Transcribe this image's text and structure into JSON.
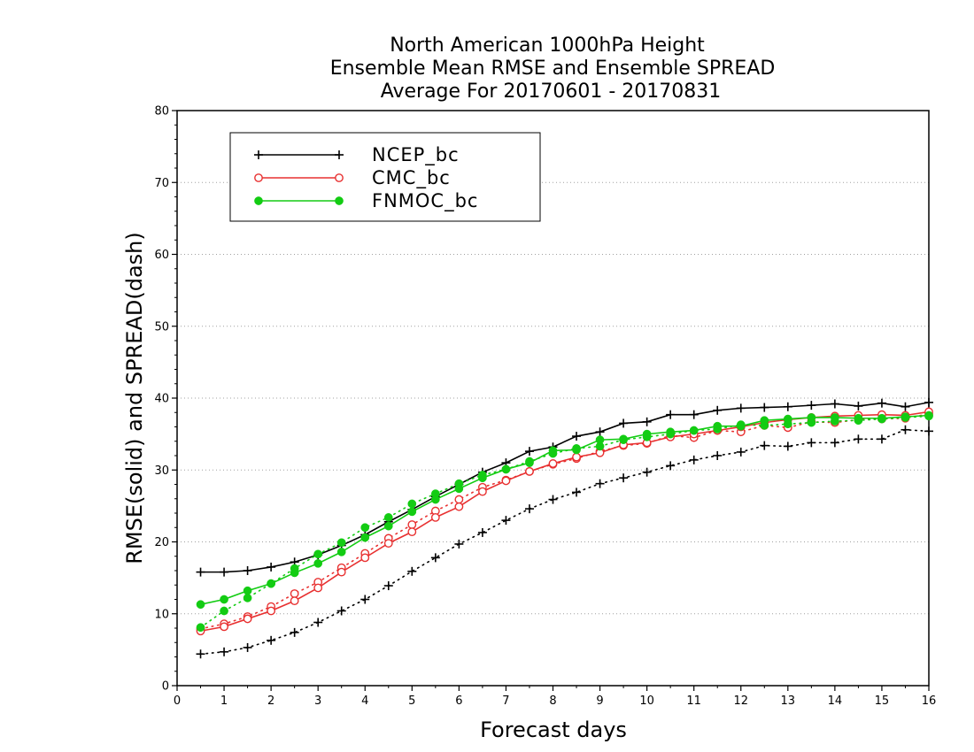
{
  "chart_data": {
    "type": "line",
    "title_lines": [
      "North American 1000hPa Height",
      "Ensemble Mean RMSE and Ensemble SPREAD",
      "Average For 20170601 - 20170831"
    ],
    "xlabel": "Forecast days",
    "ylabel": "RMSE(solid) and SPREAD(dash)",
    "xlim": [
      0,
      16
    ],
    "ylim": [
      0,
      80
    ],
    "xticks": [
      0,
      1,
      2,
      3,
      4,
      5,
      6,
      7,
      8,
      9,
      10,
      11,
      12,
      13,
      14,
      15,
      16
    ],
    "yticks": [
      0,
      10,
      20,
      30,
      40,
      50,
      60,
      70,
      80
    ],
    "grid": "horizontal dotted",
    "legend_position": "top-left",
    "x": [
      0.5,
      1,
      1.5,
      2,
      2.5,
      3,
      3.5,
      4,
      4.5,
      5,
      5.5,
      6,
      6.5,
      7,
      7.5,
      8,
      8.5,
      9,
      9.5,
      10,
      10.5,
      11,
      11.5,
      12,
      12.5,
      13,
      13.5,
      14,
      14.5,
      15,
      15.5,
      16
    ],
    "series": [
      {
        "name": "NCEP_bc",
        "color": "#000000",
        "marker": "plus",
        "rmse": [
          15.8,
          15.8,
          16.0,
          16.5,
          17.2,
          18.2,
          19.5,
          21.0,
          22.8,
          24.5,
          26.3,
          28.0,
          29.7,
          31.0,
          32.6,
          33.2,
          34.7,
          35.3,
          36.5,
          36.7,
          37.7,
          37.7,
          38.3,
          38.6,
          38.7,
          38.8,
          39.0,
          39.2,
          38.9,
          39.3,
          38.8,
          39.4
        ],
        "spread": [
          4.4,
          4.7,
          5.3,
          6.3,
          7.4,
          8.8,
          10.4,
          12.0,
          13.9,
          15.9,
          17.8,
          19.7,
          21.3,
          23.0,
          24.6,
          25.9,
          26.9,
          28.1,
          28.9,
          29.7,
          30.6,
          31.4,
          32.0,
          32.5,
          33.4,
          33.3,
          33.8,
          33.8,
          34.3,
          34.3,
          35.6,
          35.4
        ]
      },
      {
        "name": "CMC_bc",
        "color": "#e83030",
        "marker": "open-circle",
        "rmse": [
          7.6,
          8.2,
          9.3,
          10.4,
          11.8,
          13.6,
          15.8,
          17.8,
          19.8,
          21.4,
          23.4,
          24.9,
          27.0,
          28.5,
          29.8,
          30.9,
          31.8,
          32.4,
          33.5,
          33.8,
          34.6,
          35.0,
          35.5,
          36.0,
          36.6,
          37.0,
          37.3,
          37.5,
          37.6,
          37.7,
          37.6,
          38.1
        ],
        "spread": [
          7.9,
          8.6,
          9.6,
          11.0,
          12.8,
          14.4,
          16.4,
          18.4,
          20.5,
          22.4,
          24.3,
          25.9,
          27.6,
          28.6,
          29.8,
          30.8,
          31.6,
          32.6,
          33.4,
          33.7,
          34.8,
          34.5,
          35.5,
          35.3,
          36.2,
          35.9,
          36.7,
          36.6,
          37.0,
          37.1,
          37.2,
          37.8
        ]
      },
      {
        "name": "FNMOC_bc",
        "color": "#13cc13",
        "marker": "filled-circle",
        "rmse": [
          11.3,
          12.0,
          13.2,
          14.2,
          15.7,
          17.0,
          18.6,
          20.6,
          22.2,
          24.2,
          25.9,
          27.4,
          28.9,
          30.1,
          31.0,
          32.7,
          32.8,
          34.2,
          34.3,
          35.0,
          35.3,
          35.5,
          36.1,
          36.1,
          36.9,
          37.1,
          37.3,
          37.3,
          37.2,
          37.2,
          37.4,
          37.6
        ],
        "spread": [
          8.1,
          10.4,
          12.2,
          14.2,
          16.3,
          18.3,
          19.9,
          22.0,
          23.4,
          25.3,
          26.7,
          28.1,
          29.3,
          30.1,
          31.2,
          32.3,
          33.0,
          33.3,
          34.2,
          34.6,
          35.0,
          35.5,
          35.7,
          36.3,
          36.2,
          36.4,
          36.6,
          36.8,
          36.9,
          37.1,
          37.3,
          37.5
        ]
      }
    ]
  }
}
